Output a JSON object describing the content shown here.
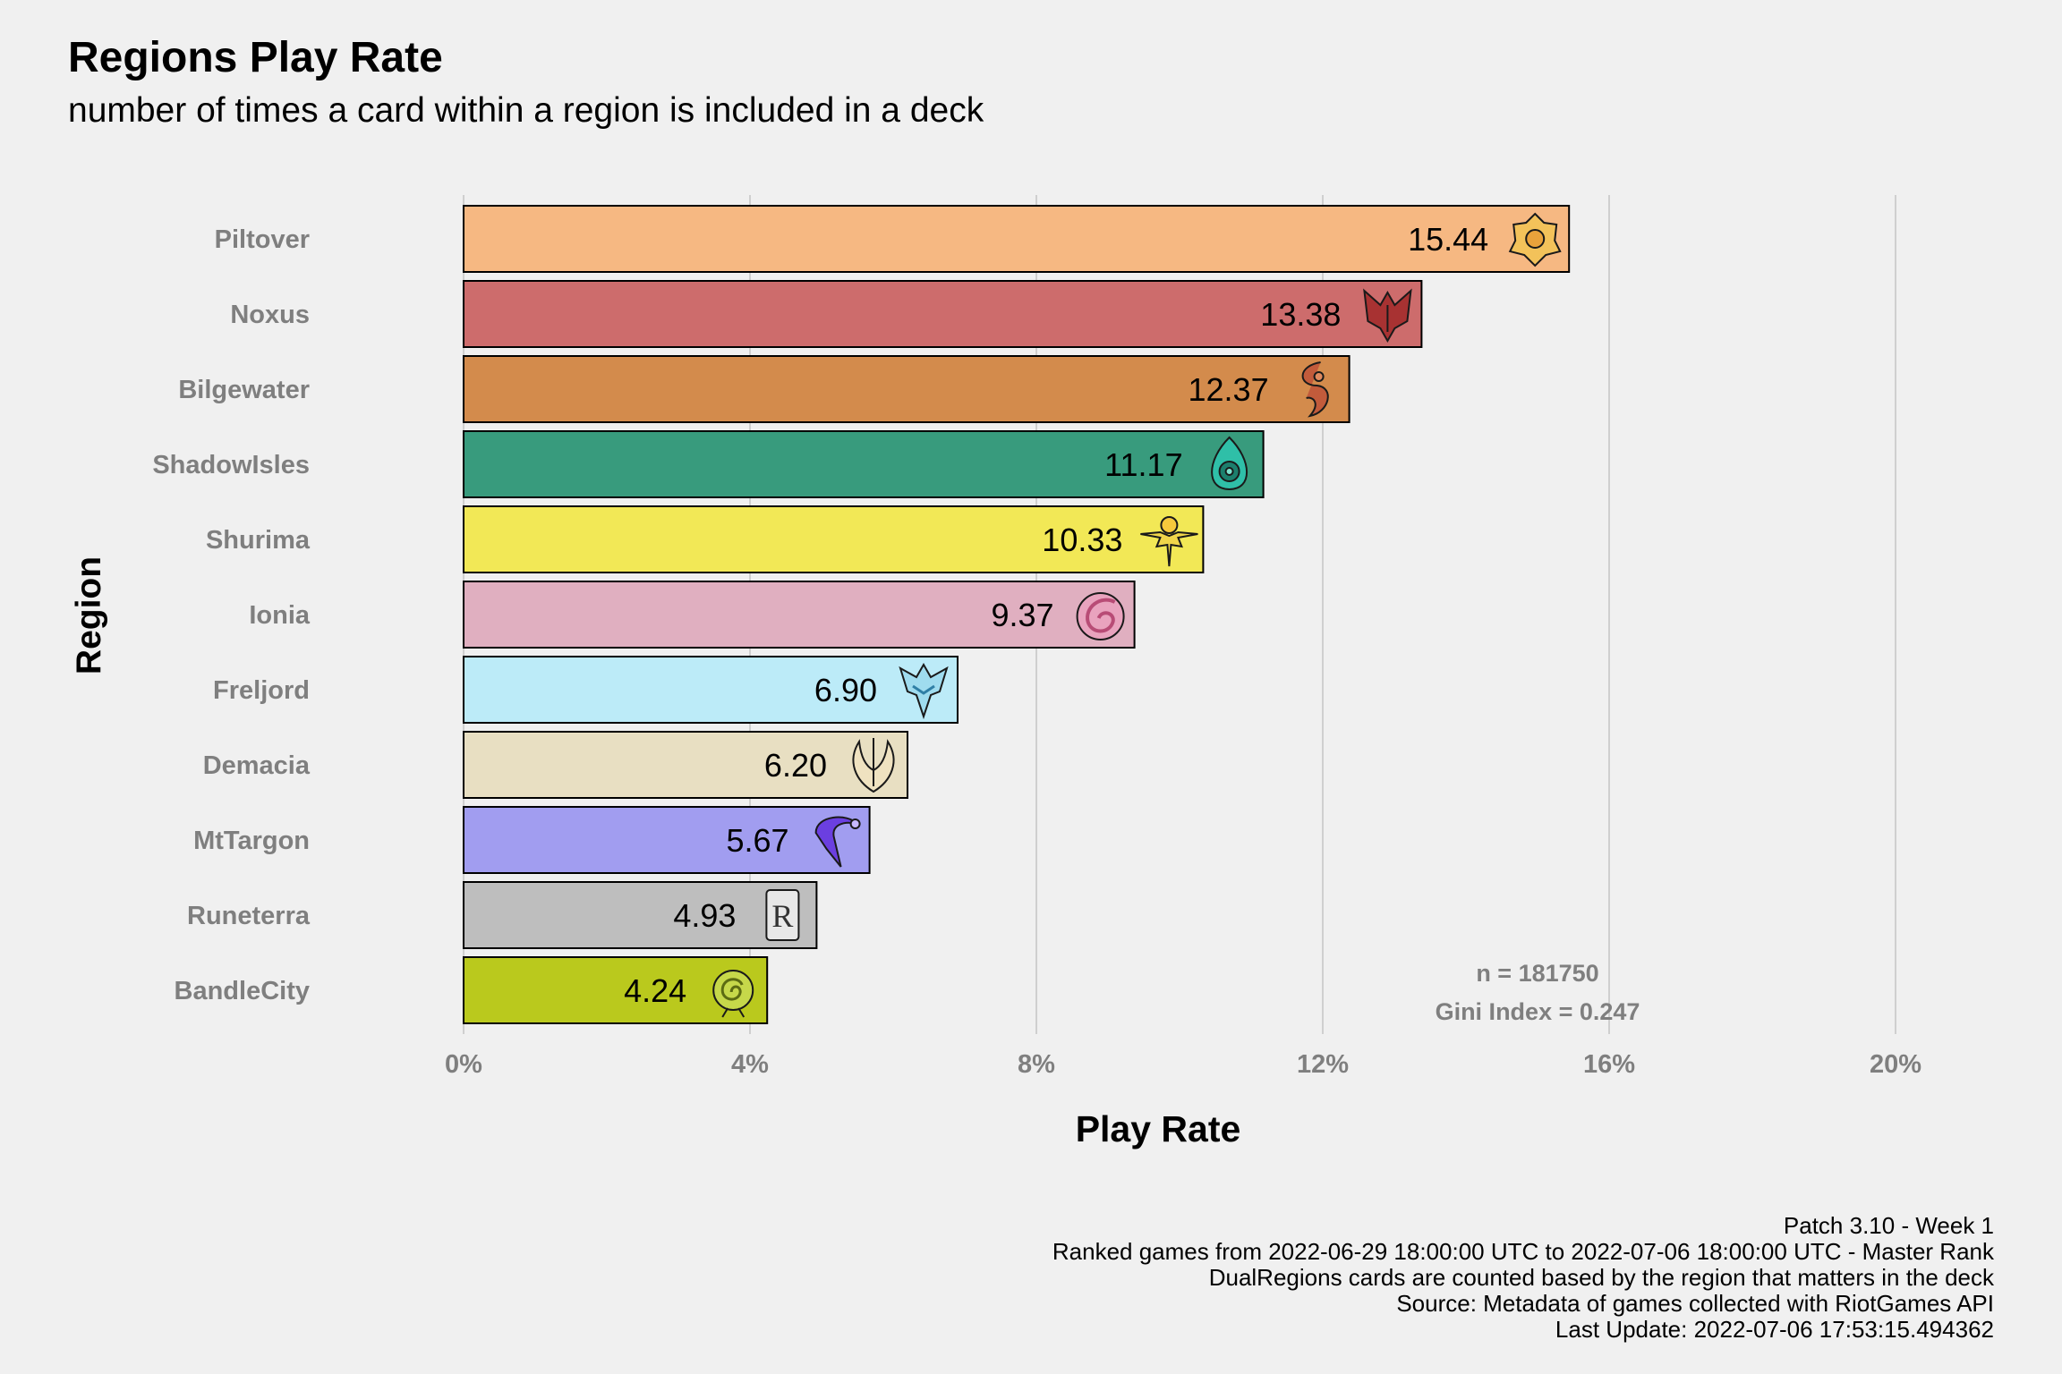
{
  "chart_data": {
    "type": "bar",
    "orientation": "horizontal",
    "title": "Regions Play Rate",
    "subtitle": "number of times a card within a region is included in a deck",
    "xlabel": "Play Rate",
    "ylabel": "Region",
    "xlim": [
      0,
      20
    ],
    "x_ticks": [
      "0%",
      "4%",
      "8%",
      "12%",
      "16%",
      "20%"
    ],
    "x_tick_values": [
      0,
      4,
      8,
      12,
      16,
      20
    ],
    "grid": "vertical major",
    "legend": "none",
    "categories": [
      "Piltover",
      "Noxus",
      "Bilgewater",
      "ShadowIsles",
      "Shurima",
      "Ionia",
      "Freljord",
      "Demacia",
      "MtTargon",
      "Runeterra",
      "BandleCity"
    ],
    "values": [
      15.44,
      13.38,
      12.37,
      11.17,
      10.33,
      9.37,
      6.9,
      6.2,
      5.67,
      4.93,
      4.24
    ],
    "value_labels": [
      "15.44",
      "13.38",
      "12.37",
      "11.17",
      "10.33",
      "9.37",
      "6.90",
      "6.20",
      "5.67",
      "4.93",
      "4.24"
    ],
    "colors": [
      "#F6B882",
      "#CD6C6C",
      "#D38B4C",
      "#389B7D",
      "#F2E856",
      "#E0AFC0",
      "#BCEBF8",
      "#E8DFC2",
      "#A19DF0",
      "#BEBEBE",
      "#BAC91D"
    ],
    "icons": [
      "piltover-crest-icon",
      "noxus-crest-icon",
      "bilgewater-crest-icon",
      "shadowisles-crest-icon",
      "shurima-crest-icon",
      "ionia-crest-icon",
      "freljord-crest-icon",
      "demacia-crest-icon",
      "mttargon-crest-icon",
      "runeterra-crest-icon",
      "bandlecity-crest-icon"
    ],
    "annotations": [
      "n = 181750",
      "Gini Index = 0.247"
    ]
  },
  "caption": [
    "Patch 3.10 - Week 1",
    "Ranked games from 2022-06-29 18:00:00 UTC to 2022-07-06 18:00:00 UTC - Master Rank",
    "DualRegions cards are counted based by the region that matters in the deck",
    "Source: Metadata of games collected with RiotGames API",
    "Last Update: 2022-07-06 17:53:15.494362"
  ]
}
